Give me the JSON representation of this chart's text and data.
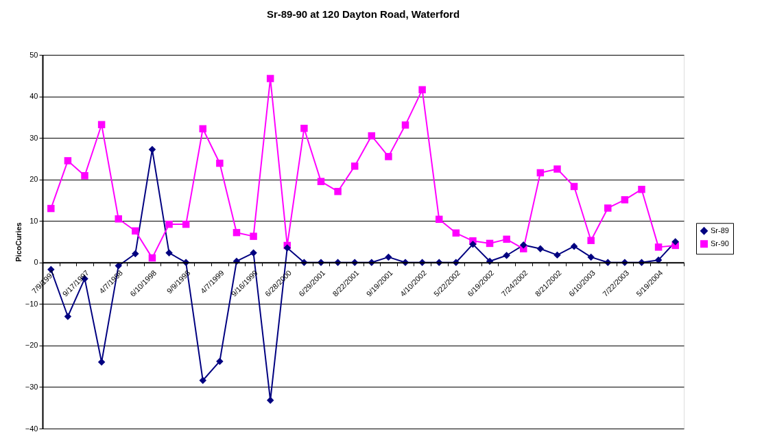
{
  "chart_data": {
    "type": "line",
    "title": "Sr-89-90 at 120 Dayton Road, Waterford",
    "ylabel": "PicoCuries",
    "categories": [
      "7/9/1997",
      null,
      "9/17/1997",
      null,
      "4/7/1998",
      null,
      "6/10/1998",
      null,
      "9/9/1998",
      null,
      "4/7/1999",
      null,
      "9/16/1999",
      null,
      "6/28/2000",
      null,
      "6/29/2001",
      null,
      "8/22/2001",
      null,
      "9/19/2001",
      null,
      "4/10/2002",
      null,
      "5/22/2002",
      null,
      "6/19/2002",
      null,
      "7/24/2002",
      null,
      "8/21/2002",
      null,
      "6/10/2003",
      null,
      "7/22/2003",
      null,
      "5/19/2004",
      null
    ],
    "series": [
      {
        "name": "Sr-89",
        "color": "#000080",
        "marker": "diamond",
        "values": [
          -1.7,
          -13.0,
          -3.9,
          -24.0,
          -0.8,
          2.1,
          27.2,
          2.3,
          0,
          -28.4,
          -23.8,
          0.3,
          2.3,
          -33.2,
          3.5,
          0,
          0,
          0,
          0,
          0,
          1.3,
          0,
          0,
          0,
          0,
          4.4,
          0.3,
          1.7,
          4.2,
          3.3,
          1.8,
          3.9,
          1.3,
          0,
          0,
          0,
          0.6,
          5.0
        ]
      },
      {
        "name": "Sr-90",
        "color": "#ff00ff",
        "marker": "square",
        "values": [
          13.0,
          24.5,
          20.9,
          33.2,
          10.5,
          7.6,
          1.1,
          9.2,
          9.2,
          32.2,
          23.9,
          7.2,
          6.3,
          44.3,
          4.1,
          32.3,
          19.5,
          17.1,
          23.2,
          30.5,
          25.5,
          33.1,
          41.6,
          10.4,
          7.1,
          5.2,
          4.6,
          5.6,
          3.3,
          21.6,
          22.5,
          18.3,
          5.3,
          13.1,
          15.1,
          17.6,
          3.7,
          4.1
        ]
      }
    ],
    "ylim": [
      -40,
      50
    ],
    "yticks": [
      -40,
      -30,
      -20,
      -10,
      0,
      10,
      20,
      30,
      40,
      50
    ],
    "grid": "y",
    "legend": "right",
    "line_style": "solid"
  }
}
